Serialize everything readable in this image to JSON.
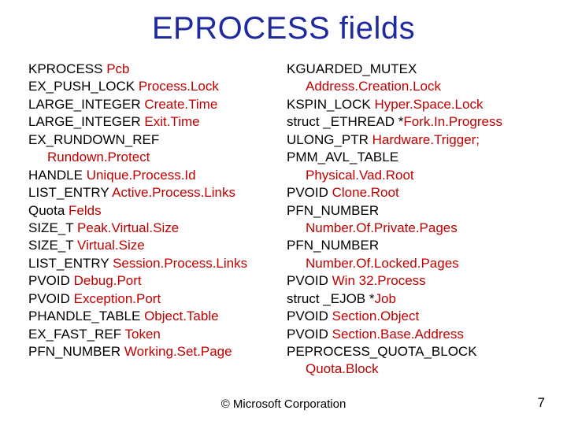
{
  "title": "EPROCESS fields",
  "footer": "© Microsoft Corporation",
  "page_number": "7",
  "colors": {
    "title": "#1f2aa0",
    "text": "#000000",
    "highlight": "#c00000",
    "background": "#ffffff"
  },
  "typography": {
    "title_fontsize": 40,
    "body_fontsize": 17,
    "footer_fontsize": 15,
    "font_family": "Arial"
  },
  "left": [
    {
      "pre": "KPROCESS ",
      "hi": "Pcb",
      "indent": false
    },
    {
      "pre": "EX_PUSH_LOCK ",
      "hi": "Process.Lock",
      "indent": false
    },
    {
      "pre": "LARGE_INTEGER ",
      "hi": "Create.Time",
      "indent": false
    },
    {
      "pre": "LARGE_INTEGER ",
      "hi": "Exit.Time",
      "indent": false
    },
    {
      "pre": "EX_RUNDOWN_REF",
      "hi": "",
      "indent": false
    },
    {
      "pre": "",
      "hi": "Rundown.Protect",
      "indent": true
    },
    {
      "pre": "HANDLE ",
      "hi": "Unique.Process.Id",
      "indent": false
    },
    {
      "pre": "LIST_ENTRY ",
      "hi": "Active.Process.Links",
      "indent": false
    },
    {
      "pre": "Quota ",
      "hi": "Felds",
      "indent": false
    },
    {
      "pre": "SIZE_T ",
      "hi": "Peak.Virtual.Size",
      "indent": false
    },
    {
      "pre": "SIZE_T ",
      "hi": "Virtual.Size",
      "indent": false
    },
    {
      "pre": "LIST_ENTRY ",
      "hi": "Session.Process.Links",
      "indent": false
    },
    {
      "pre": "PVOID ",
      "hi": "Debug.Port",
      "indent": false
    },
    {
      "pre": "PVOID ",
      "hi": "Exception.Port",
      "indent": false
    },
    {
      "pre": "PHANDLE_TABLE ",
      "hi": "Object.Table",
      "indent": false
    },
    {
      "pre": "EX_FAST_REF ",
      "hi": "Token",
      "indent": false
    },
    {
      "pre": "PFN_NUMBER ",
      "hi": "Working.Set.Page",
      "indent": false
    }
  ],
  "right": [
    {
      "pre": "KGUARDED_MUTEX",
      "hi": "",
      "indent": false
    },
    {
      "pre": "",
      "hi": "Address.Creation.Lock",
      "indent": true
    },
    {
      "pre": "KSPIN_LOCK ",
      "hi": "Hyper.Space.Lock",
      "indent": false
    },
    {
      "pre": "struct _ETHREAD *",
      "hi": "Fork.In.Progress",
      "indent": false
    },
    {
      "pre": "ULONG_PTR ",
      "hi": "Hardware.Trigger;",
      "indent": false
    },
    {
      "pre": "PMM_AVL_TABLE",
      "hi": "",
      "indent": false
    },
    {
      "pre": "",
      "hi": "Physical.Vad.Root",
      "indent": true
    },
    {
      "pre": "PVOID ",
      "hi": "Clone.Root",
      "indent": false
    },
    {
      "pre": "PFN_NUMBER",
      "hi": "",
      "indent": false
    },
    {
      "pre": "",
      "hi": "Number.Of.Private.Pages",
      "indent": true
    },
    {
      "pre": "PFN_NUMBER",
      "hi": "",
      "indent": false
    },
    {
      "pre": "",
      "hi": "Number.Of.Locked.Pages",
      "indent": true
    },
    {
      "pre": "PVOID ",
      "hi": "Win 32.Process",
      "indent": false
    },
    {
      "pre": "struct _EJOB *",
      "hi": "Job",
      "indent": false
    },
    {
      "pre": "PVOID ",
      "hi": "Section.Object",
      "indent": false
    },
    {
      "pre": "PVOID ",
      "hi": "Section.Base.Address",
      "indent": false
    },
    {
      "pre": "PEPROCESS_QUOTA_BLOCK",
      "hi": "",
      "indent": false
    },
    {
      "pre": "",
      "hi": "Quota.Block",
      "indent": true
    }
  ]
}
